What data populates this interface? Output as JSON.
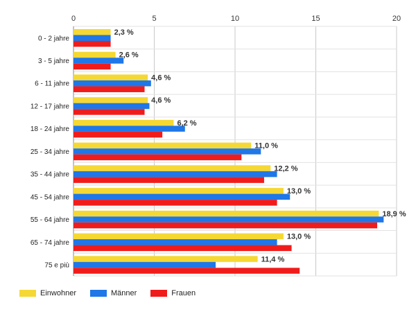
{
  "chart_data": {
    "type": "bar",
    "orientation": "horizontal",
    "categories": [
      "0 - 2 jahre",
      "3 - 5 jahre",
      "6 - 11 jahre",
      "12 - 17 jahre",
      "18 - 24 jahre",
      "25 - 34 jahre",
      "35 - 44 jahre",
      "45 - 54 jahre",
      "55 - 64 jahre",
      "65 - 74 jahre",
      "75 e più"
    ],
    "series": [
      {
        "name": "Einwohner",
        "color": "#f5d833",
        "values": [
          2.3,
          2.6,
          4.6,
          4.6,
          6.2,
          11.0,
          12.2,
          13.0,
          18.9,
          13.0,
          11.4
        ]
      },
      {
        "name": "Männer",
        "color": "#1f77e8",
        "values": [
          2.3,
          3.1,
          4.8,
          4.7,
          6.9,
          11.6,
          12.6,
          13.4,
          19.2,
          12.6,
          8.8
        ]
      },
      {
        "name": "Frauen",
        "color": "#f01c1c",
        "values": [
          2.3,
          2.3,
          4.4,
          4.4,
          5.5,
          10.4,
          11.8,
          12.6,
          18.8,
          13.5,
          14.0
        ]
      }
    ],
    "data_labels": [
      "2,3 %",
      "2,6 %",
      "4,6 %",
      "4,6 %",
      "6,2 %",
      "11,0 %",
      "12,2 %",
      "13,0 %",
      "18,9 %",
      "13,0 %",
      "11,4 %"
    ],
    "x_ticks": [
      "0",
      "5",
      "10",
      "15",
      "20"
    ],
    "xlim": [
      0,
      20
    ],
    "grid": true,
    "legend_position": "bottom-left"
  }
}
